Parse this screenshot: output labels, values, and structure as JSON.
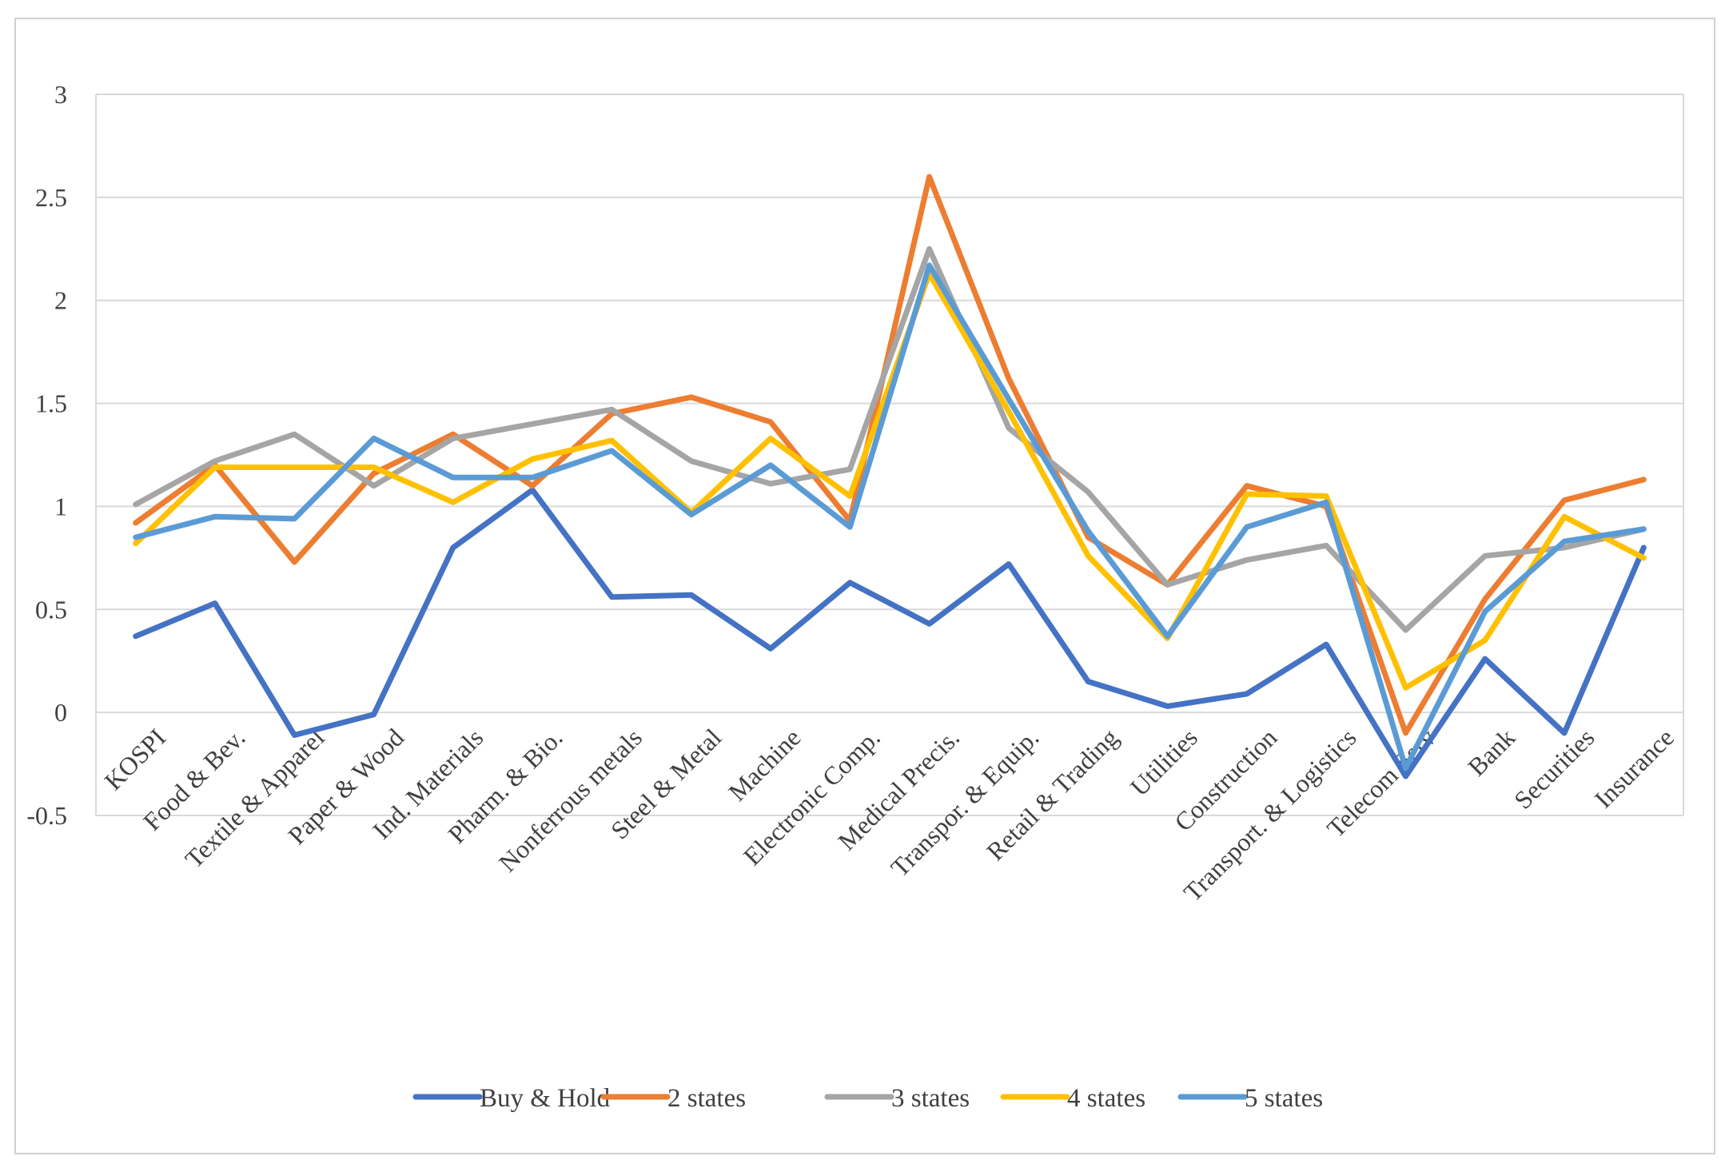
{
  "chart_data": {
    "type": "line",
    "title": "",
    "xlabel": "",
    "ylabel": "",
    "ylim": [
      -0.5,
      3
    ],
    "yticks": [
      3,
      2.5,
      2,
      1.5,
      1,
      0.5,
      0,
      -0.5
    ],
    "ytick_labels": [
      "3",
      "2.5",
      "2",
      "1.5",
      "1",
      "0.5",
      "0",
      "-0.5"
    ],
    "grid": true,
    "legend_position": "bottom",
    "categories": [
      "KOSPI",
      "Food & Bev.",
      "Textile & Apparel",
      "Paper & Wood",
      "Ind. Materials",
      "Pharm. & Bio.",
      "Nonferrous metals",
      "Steel & Metal",
      "Machine",
      "Electronic Comp.",
      "Medical Precis.",
      "Transpor. & Equip.",
      "Retail & Trading",
      "Utilities",
      "Construction",
      "Transport. & Logistics",
      "Telecom Serv",
      "Bank",
      "Securities",
      "Insurance"
    ],
    "series": [
      {
        "name": "Buy & Hold",
        "color": "#4472C4",
        "values": [
          0.37,
          0.53,
          -0.11,
          -0.01,
          0.8,
          1.08,
          0.56,
          0.57,
          0.31,
          0.63,
          0.43,
          0.72,
          0.15,
          0.03,
          0.09,
          0.33,
          -0.31,
          0.26,
          -0.1,
          0.8
        ]
      },
      {
        "name": "2 states",
        "color": "#ED7D31",
        "values": [
          0.92,
          1.2,
          0.73,
          1.16,
          1.35,
          1.1,
          1.45,
          1.53,
          1.41,
          0.93,
          2.6,
          1.62,
          0.85,
          0.62,
          1.1,
          1.0,
          -0.1,
          0.55,
          1.03,
          1.13
        ]
      },
      {
        "name": "3 states",
        "color": "#A5A5A5",
        "values": [
          1.01,
          1.22,
          1.35,
          1.1,
          1.33,
          1.4,
          1.47,
          1.22,
          1.11,
          1.18,
          2.25,
          1.38,
          1.07,
          0.62,
          0.74,
          0.81,
          0.4,
          0.76,
          0.8,
          0.89
        ]
      },
      {
        "name": "4 states",
        "color": "#FFC000",
        "values": [
          0.82,
          1.19,
          1.19,
          1.19,
          1.02,
          1.23,
          1.32,
          0.97,
          1.33,
          1.05,
          2.13,
          1.46,
          0.76,
          0.36,
          1.06,
          1.05,
          0.12,
          0.35,
          0.95,
          0.75
        ]
      },
      {
        "name": "5 states",
        "color": "#5B9BD5",
        "values": [
          0.85,
          0.95,
          0.94,
          1.33,
          1.14,
          1.14,
          1.27,
          0.96,
          1.2,
          0.9,
          2.17,
          1.52,
          0.88,
          0.37,
          0.9,
          1.02,
          -0.27,
          0.49,
          0.83,
          0.89
        ]
      }
    ]
  }
}
